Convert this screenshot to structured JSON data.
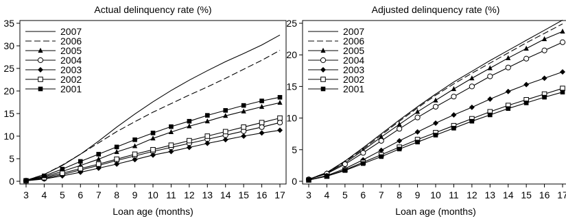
{
  "chart_data": [
    {
      "type": "line",
      "title": "Actual delinquency rate (%)",
      "xlabel": "Loan age (months)",
      "ylabel": "",
      "x": [
        3,
        4,
        5,
        6,
        7,
        8,
        9,
        10,
        11,
        12,
        13,
        14,
        15,
        16,
        17
      ],
      "xlim": [
        3,
        17
      ],
      "ylim": [
        0,
        35
      ],
      "yticks": [
        0,
        5,
        10,
        15,
        20,
        25,
        30,
        35
      ],
      "legend_position": "top-left",
      "grid": false,
      "series": [
        {
          "name": "2007",
          "line": "solid",
          "marker": "none",
          "values": [
            0.2,
            1.5,
            3.5,
            6.0,
            8.9,
            12.0,
            14.9,
            17.6,
            20.1,
            22.4,
            24.5,
            26.5,
            28.3,
            30.2,
            32.4
          ]
        },
        {
          "name": "2006",
          "line": "dashed",
          "marker": "none",
          "values": [
            0.2,
            1.5,
            3.6,
            6.0,
            8.5,
            11.0,
            13.2,
            15.3,
            17.2,
            19.1,
            20.9,
            22.8,
            24.8,
            26.8,
            29.0
          ]
        },
        {
          "name": "2005",
          "line": "solid",
          "marker": "triangle",
          "values": [
            0.2,
            1.0,
            2.2,
            3.5,
            4.9,
            6.5,
            7.8,
            9.5,
            10.9,
            12.2,
            13.3,
            14.5,
            15.5,
            16.5,
            17.4
          ]
        },
        {
          "name": "2004",
          "line": "solid",
          "marker": "circle-open",
          "values": [
            0.1,
            0.6,
            1.5,
            2.5,
            3.5,
            4.6,
            5.6,
            6.6,
            7.5,
            8.4,
            9.3,
            10.2,
            11.1,
            12.0,
            13.0
          ]
        },
        {
          "name": "2003",
          "line": "solid",
          "marker": "diamond-filled",
          "values": [
            0.1,
            0.5,
            1.2,
            2.0,
            2.9,
            3.8,
            4.8,
            5.8,
            6.6,
            7.5,
            8.4,
            9.2,
            10.0,
            10.7,
            11.3
          ]
        },
        {
          "name": "2002",
          "line": "solid",
          "marker": "square-open",
          "values": [
            0.1,
            0.8,
            1.8,
            2.8,
            3.8,
            4.9,
            6.0,
            7.0,
            8.0,
            9.0,
            10.0,
            11.0,
            12.0,
            13.0,
            14.0
          ]
        },
        {
          "name": "2001",
          "line": "solid",
          "marker": "square-filled",
          "values": [
            0.2,
            1.2,
            2.7,
            4.4,
            6.0,
            7.6,
            9.2,
            10.7,
            12.1,
            13.3,
            14.6,
            15.7,
            16.8,
            17.8,
            18.6
          ]
        }
      ]
    },
    {
      "type": "line",
      "title": "Adjusted delinquency rate (%)",
      "xlabel": "Loan age (months)",
      "ylabel": "",
      "x": [
        3,
        4,
        5,
        6,
        7,
        8,
        9,
        10,
        11,
        12,
        13,
        14,
        15,
        16,
        17
      ],
      "xlim": [
        3,
        17
      ],
      "ylim": [
        0,
        25
      ],
      "yticks": [
        0,
        5,
        10,
        15,
        20,
        25
      ],
      "legend_position": "top-left",
      "grid": false,
      "series": [
        {
          "name": "2007",
          "line": "solid",
          "marker": "none",
          "values": [
            0.3,
            1.4,
            3.2,
            5.3,
            7.5,
            9.7,
            11.8,
            13.8,
            15.7,
            17.4,
            19.1,
            20.7,
            22.3,
            23.9,
            25.5
          ]
        },
        {
          "name": "2006",
          "line": "dashed",
          "marker": "none",
          "values": [
            0.3,
            1.4,
            3.1,
            5.1,
            7.3,
            9.5,
            11.6,
            13.6,
            15.4,
            17.1,
            18.7,
            20.3,
            21.9,
            23.4,
            24.9
          ]
        },
        {
          "name": "2005",
          "line": "solid",
          "marker": "triangle",
          "values": [
            0.3,
            1.3,
            2.9,
            4.9,
            7.0,
            9.0,
            11.0,
            12.8,
            14.6,
            16.3,
            17.9,
            19.5,
            21.0,
            22.5,
            23.7
          ]
        },
        {
          "name": "2004",
          "line": "solid",
          "marker": "circle-open",
          "values": [
            0.3,
            1.2,
            2.7,
            4.5,
            6.4,
            8.3,
            10.1,
            11.8,
            13.4,
            15.0,
            16.6,
            18.0,
            19.4,
            20.7,
            22.0
          ]
        },
        {
          "name": "2003",
          "line": "solid",
          "marker": "diamond-filled",
          "values": [
            0.2,
            0.9,
            2.0,
            3.4,
            4.9,
            6.4,
            7.8,
            9.2,
            10.5,
            11.7,
            13.0,
            14.2,
            15.3,
            16.3,
            17.3
          ]
        },
        {
          "name": "2002",
          "line": "solid",
          "marker": "square-open",
          "values": [
            0.2,
            0.8,
            1.8,
            3.0,
            4.2,
            5.4,
            6.6,
            7.7,
            8.8,
            9.9,
            11.0,
            12.0,
            12.9,
            13.8,
            14.7
          ]
        },
        {
          "name": "2001",
          "line": "solid",
          "marker": "square-filled",
          "values": [
            0.2,
            0.8,
            1.7,
            2.8,
            3.9,
            5.1,
            6.2,
            7.3,
            8.4,
            9.5,
            10.5,
            11.5,
            12.4,
            13.3,
            14.1
          ]
        }
      ]
    }
  ]
}
